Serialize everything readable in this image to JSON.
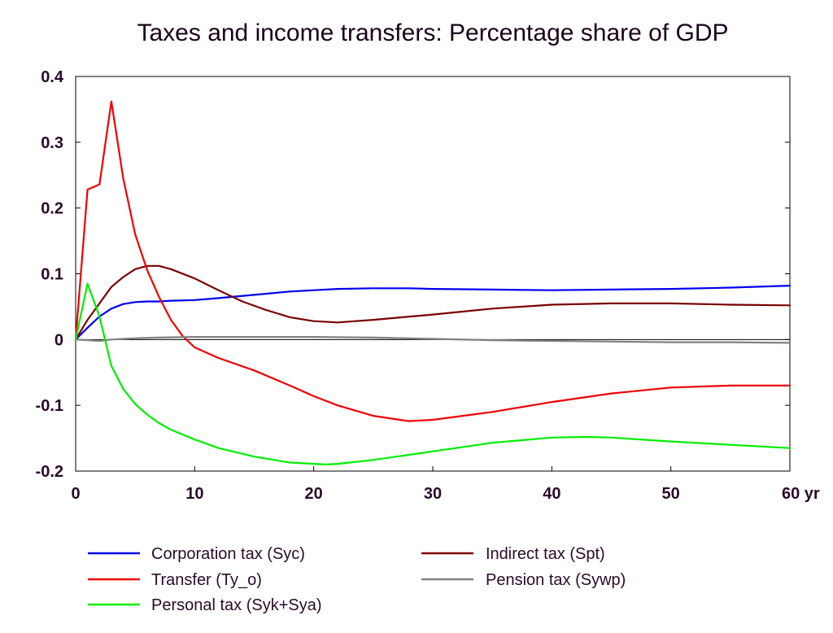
{
  "chart_data": {
    "type": "line",
    "title": "Taxes and income transfers: Percentage share of GDP",
    "xlabel": "",
    "ylabel": "",
    "xlim": [
      0,
      60
    ],
    "ylim": [
      -0.2,
      0.4
    ],
    "x_ticks": [
      {
        "value": 0,
        "label": "0"
      },
      {
        "value": 10,
        "label": "10"
      },
      {
        "value": 20,
        "label": "20"
      },
      {
        "value": 30,
        "label": "30"
      },
      {
        "value": 40,
        "label": "40"
      },
      {
        "value": 50,
        "label": "50"
      },
      {
        "value": 60,
        "label": "60 yr"
      }
    ],
    "y_ticks": [
      {
        "value": 0.4,
        "label": "0.4"
      },
      {
        "value": 0.3,
        "label": "0.3"
      },
      {
        "value": 0.2,
        "label": "0.2"
      },
      {
        "value": 0.1,
        "label": "0.1"
      },
      {
        "value": 0,
        "label": "0"
      },
      {
        "value": -0.1,
        "label": "-0.1"
      },
      {
        "value": -0.2,
        "label": "-0.2"
      }
    ],
    "grid": false,
    "zero_line": true,
    "legend_position": "bottom",
    "series": [
      {
        "name": "Corporation tax (Syc)",
        "color": "#0000ee",
        "x": [
          0,
          1,
          2,
          3,
          4,
          5,
          6,
          7,
          8,
          10,
          12,
          15,
          18,
          20,
          22,
          25,
          28,
          30,
          35,
          40,
          45,
          50,
          55,
          60
        ],
        "y": [
          0,
          0.018,
          0.035,
          0.047,
          0.054,
          0.057,
          0.058,
          0.058,
          0.059,
          0.06,
          0.063,
          0.068,
          0.073,
          0.075,
          0.077,
          0.078,
          0.078,
          0.077,
          0.076,
          0.075,
          0.076,
          0.077,
          0.079,
          0.082
        ]
      },
      {
        "name": "Indirect tax (Spt)",
        "color": "#7a0000",
        "x": [
          0,
          1,
          2,
          3,
          4,
          5,
          6,
          7,
          8,
          10,
          12,
          14,
          16,
          18,
          20,
          22,
          25,
          30,
          35,
          40,
          45,
          50,
          55,
          60
        ],
        "y": [
          0,
          0.03,
          0.055,
          0.08,
          0.095,
          0.107,
          0.112,
          0.112,
          0.107,
          0.093,
          0.075,
          0.058,
          0.045,
          0.034,
          0.028,
          0.026,
          0.03,
          0.038,
          0.047,
          0.053,
          0.055,
          0.055,
          0.053,
          0.052
        ]
      },
      {
        "name": "Transfer (Ty_o)",
        "color": "#ee0000",
        "x": [
          0,
          1,
          2,
          3,
          4,
          5,
          6,
          7,
          8,
          9,
          10,
          12,
          15,
          18,
          20,
          22,
          25,
          28,
          30,
          35,
          40,
          45,
          50,
          55,
          60
        ],
        "y": [
          0,
          0.228,
          0.236,
          0.362,
          0.245,
          0.16,
          0.106,
          0.065,
          0.03,
          0.005,
          -0.012,
          -0.028,
          -0.047,
          -0.07,
          -0.086,
          -0.1,
          -0.116,
          -0.124,
          -0.122,
          -0.11,
          -0.095,
          -0.082,
          -0.073,
          -0.07,
          -0.07
        ]
      },
      {
        "name": "Pension tax (Sywp)",
        "color": "#808080",
        "x": [
          0,
          1,
          2,
          3,
          5,
          7,
          10,
          15,
          20,
          25,
          30,
          35,
          40,
          45,
          50,
          55,
          60
        ],
        "y": [
          0,
          -0.001,
          -0.002,
          0,
          0.002,
          0.003,
          0.004,
          0.004,
          0.004,
          0.003,
          0.001,
          -0.001,
          -0.002,
          -0.003,
          -0.004,
          -0.004,
          -0.005
        ]
      },
      {
        "name": "Personal tax (Syk+Sya)",
        "color": "#00ee00",
        "x": [
          0,
          1,
          2,
          3,
          4,
          5,
          6,
          7,
          8,
          10,
          12,
          15,
          18,
          20,
          21,
          22,
          25,
          30,
          35,
          40,
          43,
          45,
          50,
          55,
          60
        ],
        "y": [
          0,
          0.085,
          0.035,
          -0.04,
          -0.075,
          -0.098,
          -0.114,
          -0.127,
          -0.137,
          -0.152,
          -0.165,
          -0.178,
          -0.187,
          -0.189,
          -0.19,
          -0.189,
          -0.183,
          -0.17,
          -0.157,
          -0.149,
          -0.148,
          -0.149,
          -0.155,
          -0.16,
          -0.165
        ]
      }
    ]
  },
  "legend": {
    "columns": [
      [
        "Corporation tax (Syc)",
        "Transfer (Ty_o)",
        "Personal tax (Syk+Sya)"
      ],
      [
        "Indirect tax (Spt)",
        "Pension tax (Sywp)"
      ]
    ]
  }
}
